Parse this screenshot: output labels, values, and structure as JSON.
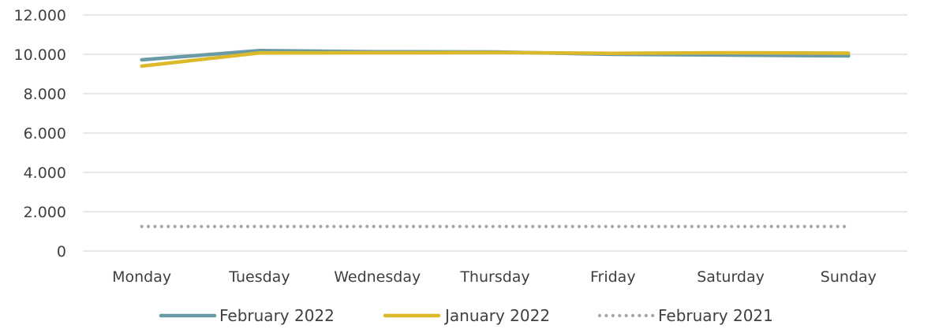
{
  "chart_data": {
    "type": "line",
    "categories": [
      "Monday",
      "Tuesday",
      "Wednesday",
      "Thursday",
      "Friday",
      "Saturday",
      "Sunday"
    ],
    "series": [
      {
        "name": "February 2022",
        "values": [
          9720,
          10190,
          10130,
          10120,
          10000,
          9960,
          9920
        ],
        "color": "#6a9aa6",
        "style": "solid"
      },
      {
        "name": "January 2022",
        "values": [
          9400,
          10070,
          10080,
          10090,
          10050,
          10080,
          10060
        ],
        "color": "#dbb92b",
        "style": "solid"
      },
      {
        "name": "February 2021",
        "values": [
          1250,
          1250,
          1250,
          1250,
          1250,
          1250,
          1250
        ],
        "color": "#a6a6a6",
        "style": "dotted"
      }
    ],
    "yticks": [
      "0",
      "2.000",
      "4.000",
      "6.000",
      "8.000",
      "10.000",
      "12.000"
    ],
    "ylim": [
      0,
      12000
    ],
    "grid": true,
    "legend_position": "bottom"
  }
}
